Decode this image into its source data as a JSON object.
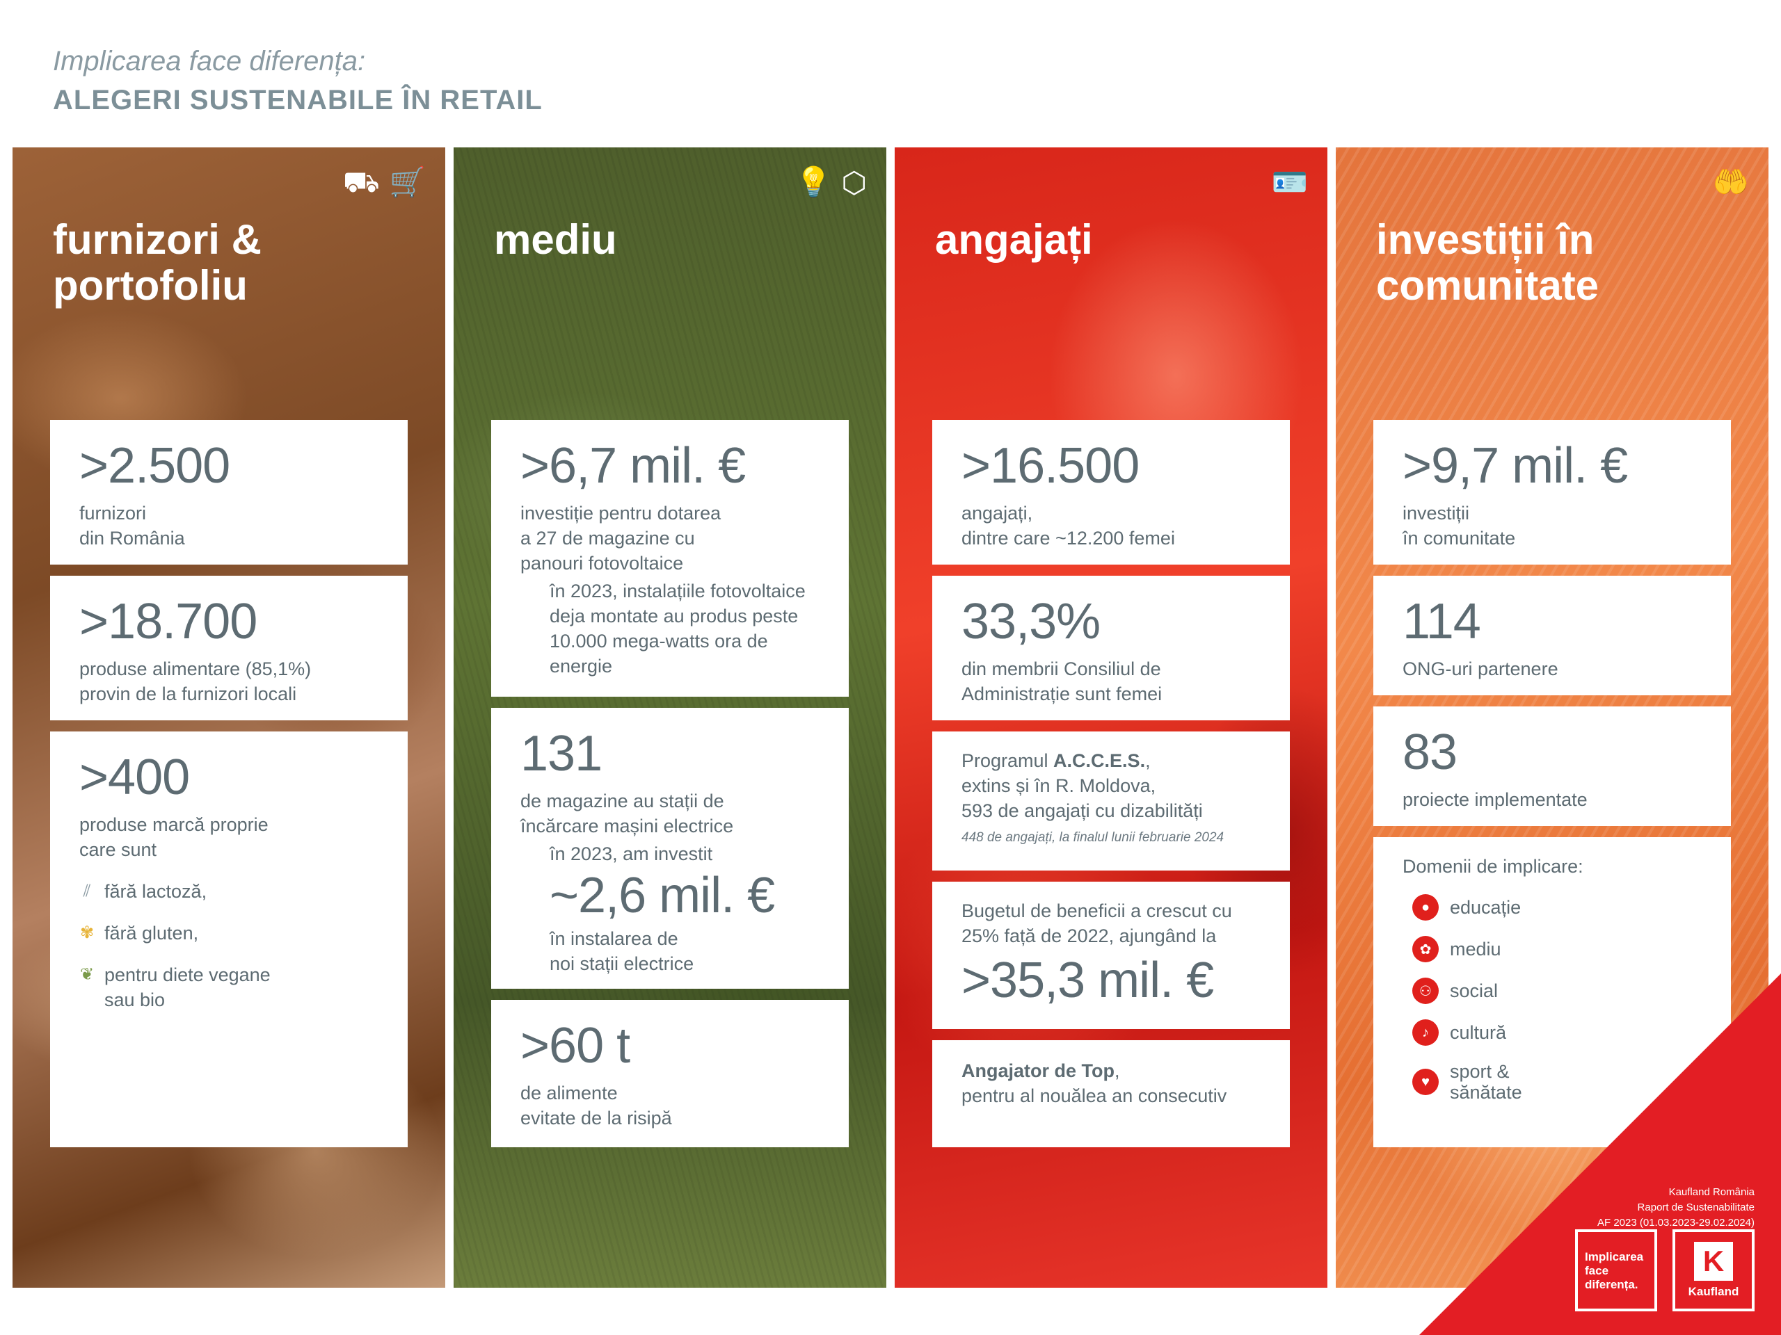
{
  "header": {
    "subtitle": "Implicarea face diferența:",
    "title": "ALEGERI SUSTENABILE ÎN RETAIL"
  },
  "col1": {
    "title_l1": "furnizori &",
    "title_l2": "portofoliu",
    "icons": [
      "trolley-icon",
      "cart-icon"
    ],
    "c1": {
      "value": ">2.500",
      "l1": "furnizori",
      "l2": "din România"
    },
    "c2": {
      "value": ">18.700",
      "l1": "produse alimentare (85,1%)",
      "l2": "provin de la furnizori locali"
    },
    "c3": {
      "value": ">400",
      "l1": "produse marcă proprie",
      "l2": "care sunt",
      "i1": "fără lactoză,",
      "i2": "fără gluten,",
      "i3a": "pentru diete vegane",
      "i3b": "sau bio"
    }
  },
  "col2": {
    "title": "mediu",
    "icons": [
      "bulb-icon",
      "box-icon"
    ],
    "c1": {
      "value": ">6,7 mil. €",
      "l1": "investiție pentru dotarea",
      "l2": "a 27 de magazine cu",
      "l3": "panouri fotovoltaice",
      "n1": "în 2023, instalațiile fotovoltaice",
      "n2": "deja montate au produs peste",
      "n3": "10.000 mega-watts ora de",
      "n4": "energie"
    },
    "c2": {
      "value": "131",
      "l1": "de magazine au stații de",
      "l2": "încărcare mașini electrice",
      "n1": "în 2023, am investit",
      "value2": "~2,6 mil. €",
      "n2": "în instalarea de",
      "n3": "noi stații electrice"
    },
    "c3": {
      "value": ">60 t",
      "l1": "de alimente",
      "l2": "evitate de la risipă"
    }
  },
  "col3": {
    "title": "angajați",
    "icons": [
      "id-card-icon"
    ],
    "c1": {
      "value": ">16.500",
      "l1": "angajați,",
      "l2": "dintre care ~12.200 femei"
    },
    "c2": {
      "value": "33,3%",
      "l1": "din membrii Consiliul de",
      "l2": "Administrație sunt femei"
    },
    "c3": {
      "l1a": "Programul ",
      "l1b": "A.C.C.E.S.",
      "l1c": ",",
      "l2": "extins și în R. Moldova,",
      "l3": "593 de angajați cu dizabilități",
      "note": "448 de angajați, la finalul lunii februarie 2024"
    },
    "c4": {
      "l1": "Bugetul de beneficii a crescut cu",
      "l2": "25% față de 2022, ajungând la",
      "value": ">35,3 mil. €"
    },
    "c5": {
      "l1a": "Angajator de Top",
      "l1b": ",",
      "l2": "pentru al nouălea an consecutiv"
    }
  },
  "col4": {
    "title_l1": "investiții în",
    "title_l2": "comunitate",
    "icons": [
      "hand-person-icon"
    ],
    "c1": {
      "value": ">9,7 mil. €",
      "l1": "investiții",
      "l2": "în comunitate"
    },
    "c2": {
      "value": "114",
      "l1": "ONG-uri partenere"
    },
    "c3": {
      "value": "83",
      "l1": "proiecte implementate"
    },
    "c4": {
      "heading": "Domenii de implicare:",
      "d1": "educație",
      "d2": "mediu",
      "d3": "social",
      "d4": "cultură",
      "d5a": "sport &",
      "d5b": "sănătate"
    }
  },
  "footer": {
    "l1": "Kaufland România",
    "l2": "Raport de Sustenabilitate",
    "l3": "AF 2023 (01.03.2023-29.02.2024)",
    "logo1_l1": "Implicarea",
    "logo1_l2": "face",
    "logo1_l3": "diferența.",
    "logo2_mark": "K",
    "logo2_name": "Kaufland",
    "accent": "#e31e24"
  }
}
